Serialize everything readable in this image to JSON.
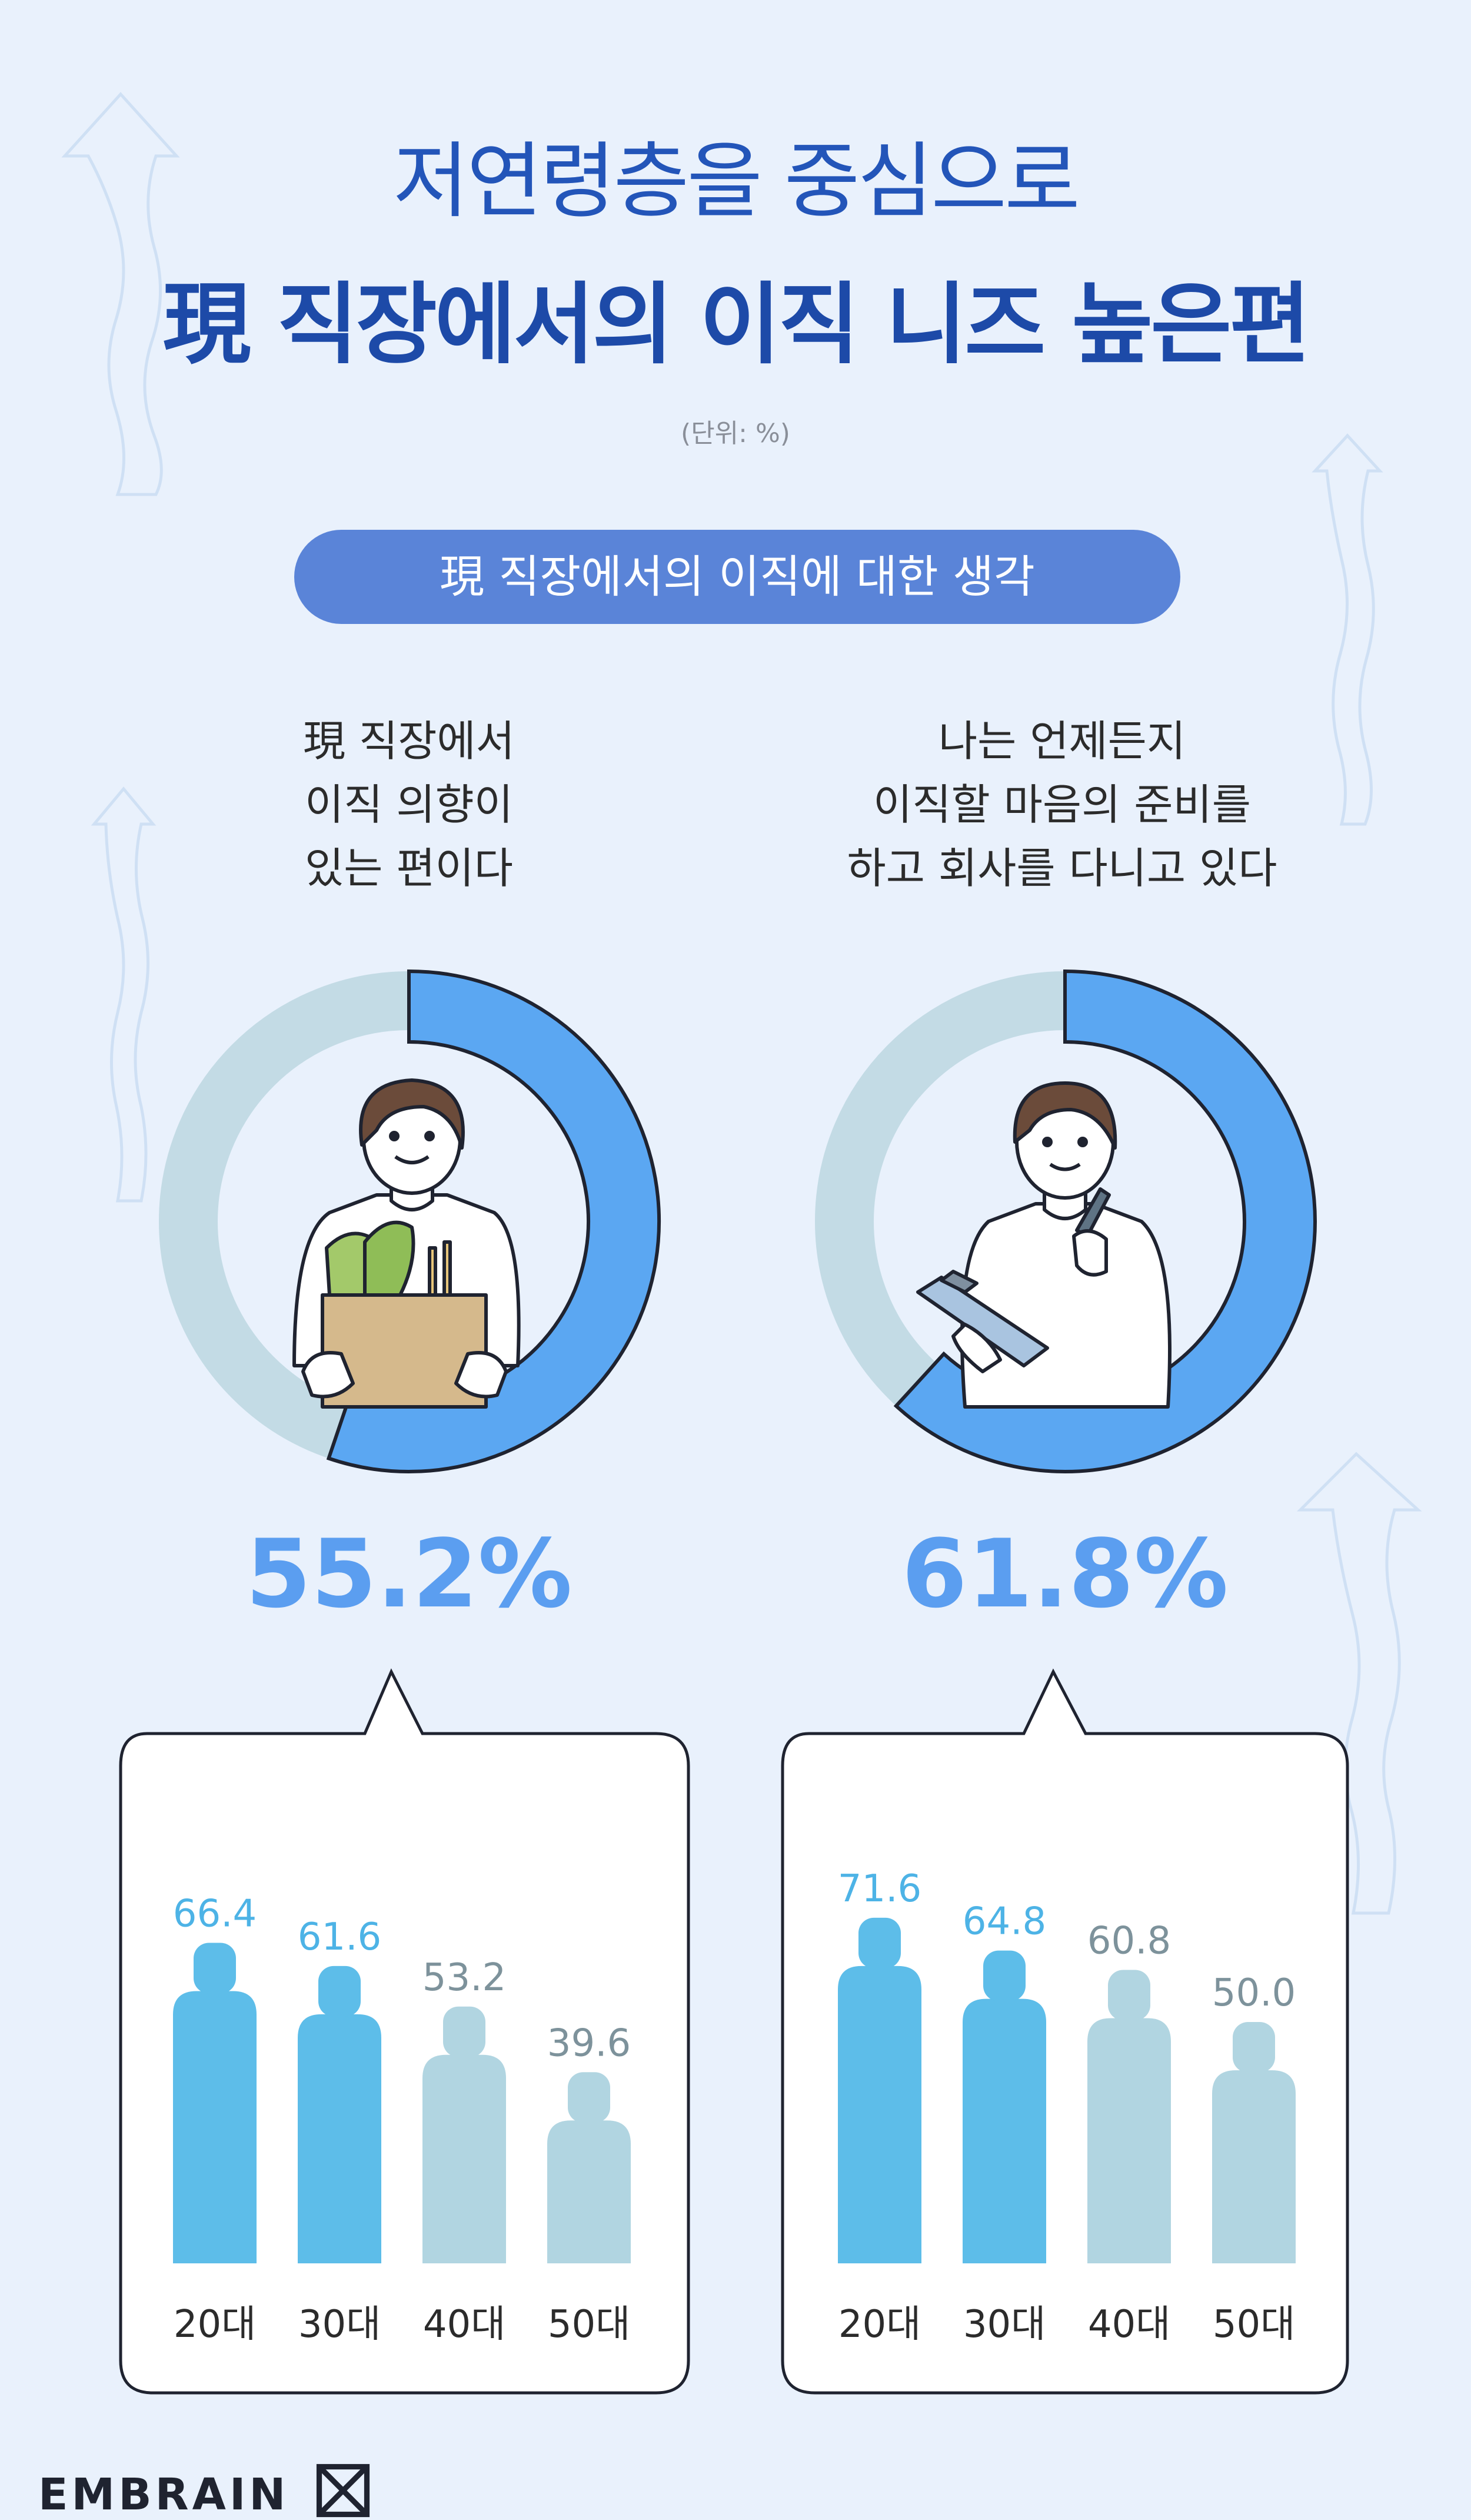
{
  "title_line1": "저연령층을 중심으로",
  "title_line2": "現 직장에서의 이직 니즈 높은편",
  "unit": "(단위: %)",
  "section_label": "現 직장에서의 이직에 대한 생각",
  "brand": "EMBRAIN",
  "colors": {
    "accent": "#5b9ef0",
    "ring_bg": "#c3dbe5",
    "bar_high": "#5dbde9",
    "bar_low": "#b1d5e1"
  },
  "chart_data": [
    {
      "type": "pie",
      "question_lines": [
        "現 직장에서",
        "이직 의향이",
        "있는 편이다"
      ],
      "value": 55.2,
      "value_label": "55.2%"
    },
    {
      "type": "pie",
      "question_lines": [
        "나는 언제든지",
        "이직할 마음의 준비를",
        "하고 회사를 다니고 있다"
      ],
      "value": 61.8,
      "value_label": "61.8%"
    },
    {
      "type": "bar",
      "categories": [
        "20대",
        "30대",
        "40대",
        "50대"
      ],
      "values": [
        66.4,
        61.6,
        53.2,
        39.6
      ],
      "value_labels": [
        "66.4",
        "61.6",
        "53.2",
        "39.6"
      ]
    },
    {
      "type": "bar",
      "categories": [
        "20대",
        "30대",
        "40대",
        "50대"
      ],
      "values": [
        71.6,
        64.8,
        60.8,
        50.0
      ],
      "value_labels": [
        "71.6",
        "64.8",
        "60.8",
        "50.0"
      ]
    }
  ]
}
